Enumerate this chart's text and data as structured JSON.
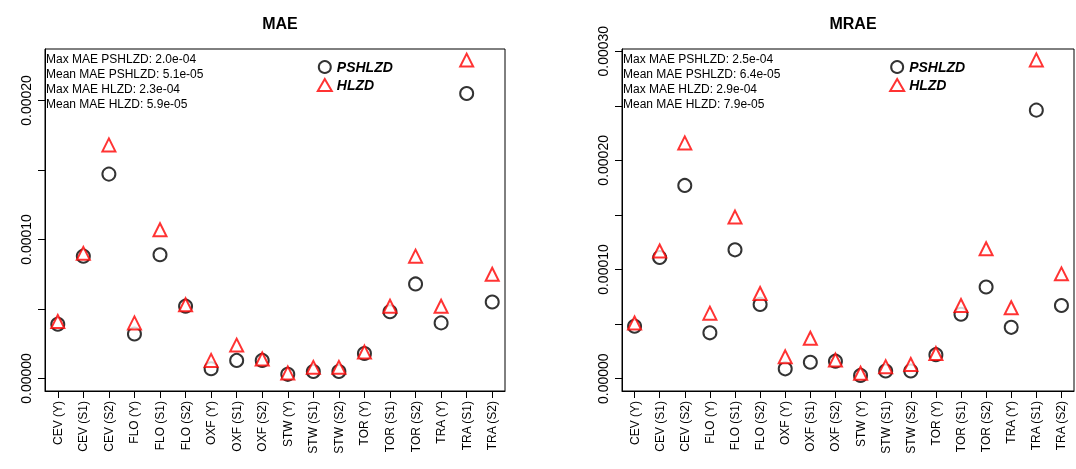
{
  "chart_data": [
    {
      "type": "scatter",
      "title": "MAE",
      "categories": [
        "CEV (Y)",
        "CEV (S1)",
        "CEV (S2)",
        "FLO (Y)",
        "FLO (S1)",
        "FLO (S2)",
        "OXF (Y)",
        "OXF (S1)",
        "OXF (S2)",
        "STW (Y)",
        "STW (S1)",
        "STW (S2)",
        "TOR (Y)",
        "TOR (S1)",
        "TOR (S2)",
        "TRA (Y)",
        "TRA (S1)",
        "TRA (S2)"
      ],
      "series": [
        {
          "name": "PSHLZD",
          "color": "#000000",
          "marker": "circle",
          "values": [
            3.9e-05,
            8.8e-05,
            0.000147,
            3.2e-05,
            8.9e-05,
            5.2e-05,
            7e-06,
            1.3e-05,
            1.3e-05,
            3e-06,
            5e-06,
            5e-06,
            1.8e-05,
            4.8e-05,
            6.8e-05,
            4e-05,
            0.000205,
            5.5e-05
          ]
        },
        {
          "name": "HLZD",
          "color": "#ff0000",
          "marker": "triangle",
          "values": [
            4.1e-05,
            9e-05,
            0.000168,
            4e-05,
            0.000107,
            5.3e-05,
            1.3e-05,
            2.4e-05,
            1.4e-05,
            4e-06,
            8e-06,
            8e-06,
            1.9e-05,
            5.2e-05,
            8.8e-05,
            5.2e-05,
            0.000229,
            7.5e-05
          ]
        }
      ],
      "ylim": [
        -9e-06,
        0.000237
      ],
      "yticks": [
        {
          "value": 0,
          "label": "0.00000"
        },
        {
          "value": 5e-05,
          "label": null
        },
        {
          "value": 0.0001,
          "label": "0.00010"
        },
        {
          "value": 0.00015,
          "label": null
        },
        {
          "value": 0.0002,
          "label": "0.00020"
        }
      ],
      "grid": false,
      "legend": "top right",
      "annotations": [
        "Max MAE PSHLZD: 2.0e-04",
        "Mean MAE PSHLZD: 5.1e-05",
        "Max MAE HLZD: 2.3e-04",
        "Mean MAE HLZD: 5.9e-05"
      ]
    },
    {
      "type": "scatter",
      "title": "MRAE",
      "categories": [
        "CEV (Y)",
        "CEV (S1)",
        "CEV (S2)",
        "FLO (Y)",
        "FLO (S1)",
        "FLO (S2)",
        "OXF (Y)",
        "OXF (S1)",
        "OXF (S2)",
        "STW (Y)",
        "STW (S1)",
        "STW (S2)",
        "TOR (Y)",
        "TOR (S1)",
        "TOR (S2)",
        "TRA (Y)",
        "TRA (S1)",
        "TRA (S2)"
      ],
      "series": [
        {
          "name": "PSHLZD",
          "color": "#000000",
          "marker": "circle",
          "values": [
            4.8e-05,
            0.000111,
            0.000177,
            4.2e-05,
            0.000118,
            6.8e-05,
            9e-06,
            1.5e-05,
            1.6e-05,
            3e-06,
            7e-06,
            7e-06,
            2.2e-05,
            5.9e-05,
            8.4e-05,
            4.7e-05,
            0.000246,
            6.7e-05
          ]
        },
        {
          "name": "HLZD",
          "color": "#ff0000",
          "marker": "triangle",
          "values": [
            5.1e-05,
            0.000117,
            0.000216,
            6e-05,
            0.000148,
            7.8e-05,
            2e-05,
            3.7e-05,
            1.7e-05,
            5e-06,
            1.1e-05,
            1.3e-05,
            2.3e-05,
            6.7e-05,
            0.000119,
            6.5e-05,
            0.000292,
            9.6e-05
          ]
        }
      ],
      "ylim": [
        -1.13e-05,
        0.000302
      ],
      "yticks": [
        {
          "value": 0,
          "label": "0.00000"
        },
        {
          "value": 5e-05,
          "label": null
        },
        {
          "value": 0.0001,
          "label": "0.00010"
        },
        {
          "value": 0.00015,
          "label": null
        },
        {
          "value": 0.0002,
          "label": "0.00020"
        },
        {
          "value": 0.00025,
          "label": null
        },
        {
          "value": 0.0003,
          "label": "0.00030"
        }
      ],
      "grid": false,
      "legend": "top right",
      "annotations": [
        "Max MAE PSHLZD: 2.5e-04",
        "Mean MAE PSHLZD: 6.4e-05",
        "Max MAE HLZD: 2.9e-04",
        "Mean MAE HLZD: 7.9e-05"
      ]
    }
  ]
}
